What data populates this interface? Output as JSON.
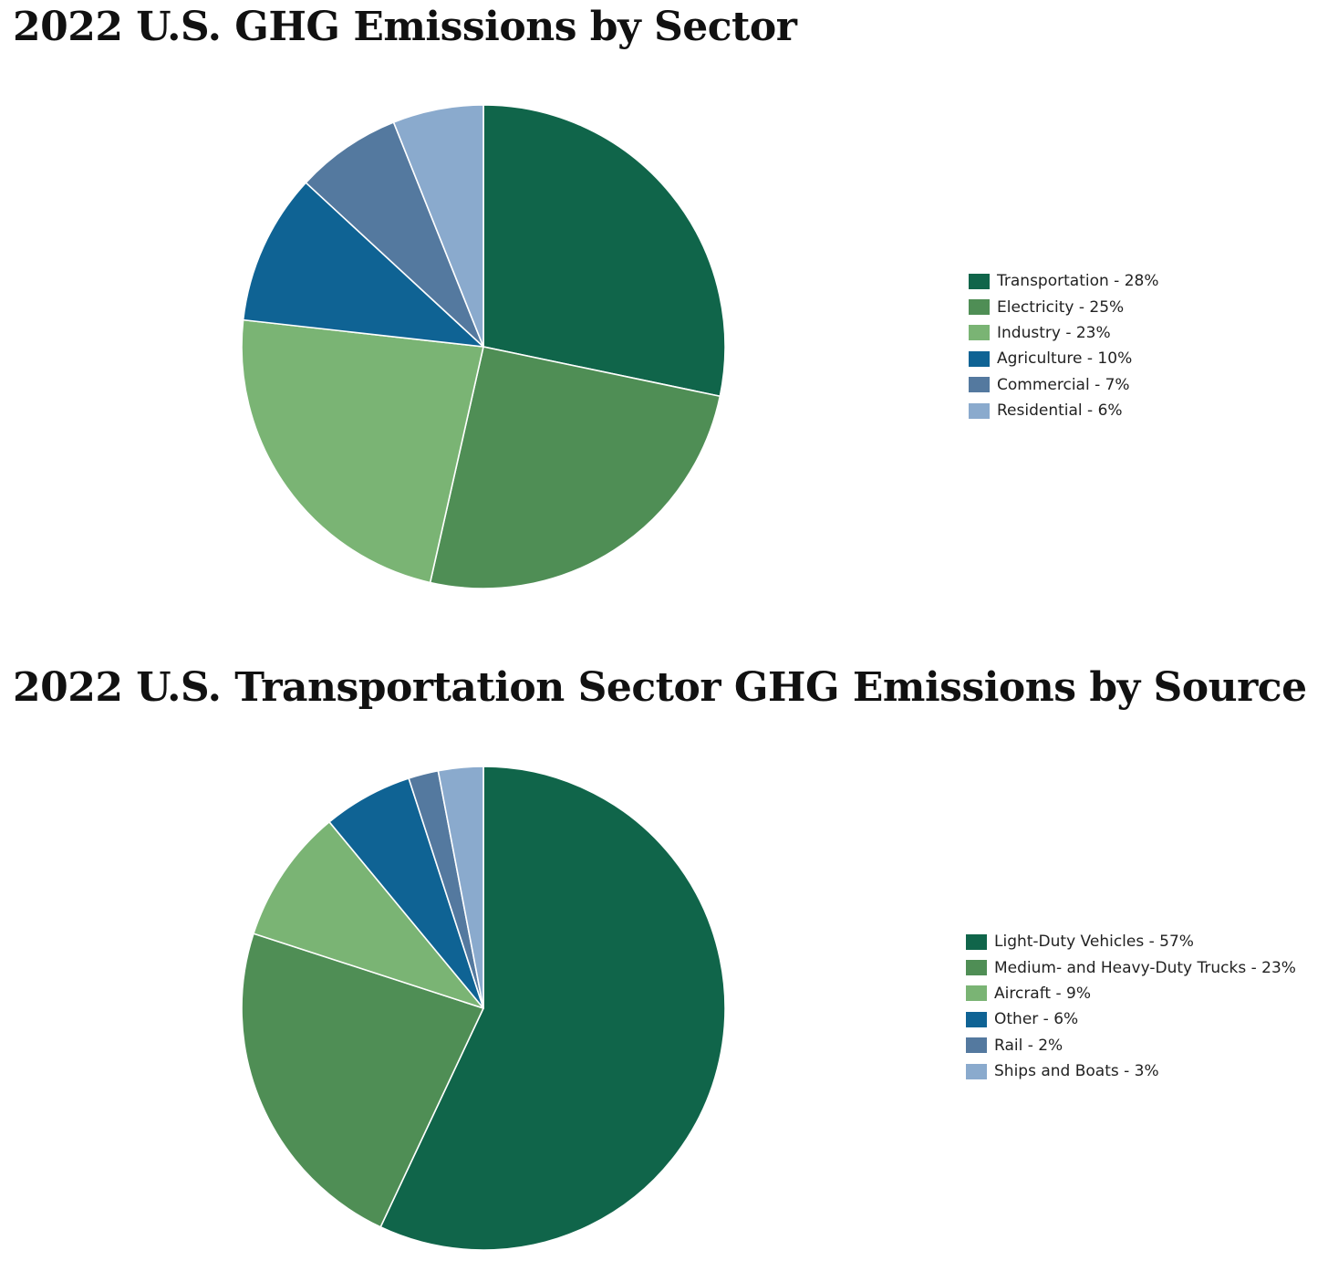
{
  "chart_data": [
    {
      "type": "pie",
      "title": "2022 U.S. GHG Emissions by Sector",
      "categories": [
        "Transportation",
        "Electricity",
        "Industry",
        "Agriculture",
        "Commercial",
        "Residential"
      ],
      "values": [
        28,
        25,
        23,
        10,
        7,
        6
      ],
      "unit": "%",
      "legend_labels": [
        "Transportation - 28%",
        "Electricity - 25%",
        "Industry - 23%",
        "Agriculture - 10%",
        "Commercial - 7%",
        "Residential - 6%"
      ],
      "colors": [
        "#10654a",
        "#4f8e55",
        "#7ab474",
        "#0f6394",
        "#54799f",
        "#8aaacd"
      ],
      "legend_position": "right",
      "start_angle": "top, clockwise"
    },
    {
      "type": "pie",
      "title": "2022 U.S. Transportation Sector GHG Emissions by Source",
      "categories": [
        "Light-Duty Vehicles",
        "Medium- and Heavy-Duty Trucks",
        "Aircraft",
        "Other",
        "Rail",
        "Ships and Boats"
      ],
      "values": [
        57,
        23,
        9,
        6,
        2,
        3
      ],
      "unit": "%",
      "legend_labels": [
        "Light-Duty Vehicles - 57%",
        "Medium- and Heavy-Duty Trucks - 23%",
        "Aircraft - 9%",
        "Other - 6%",
        "Rail - 2%",
        "Ships and Boats - 3%"
      ],
      "colors": [
        "#10654a",
        "#4f8e55",
        "#7ab474",
        "#0f6394",
        "#54799f",
        "#8aaacd"
      ],
      "legend_position": "right",
      "start_angle": "top, clockwise"
    }
  ]
}
